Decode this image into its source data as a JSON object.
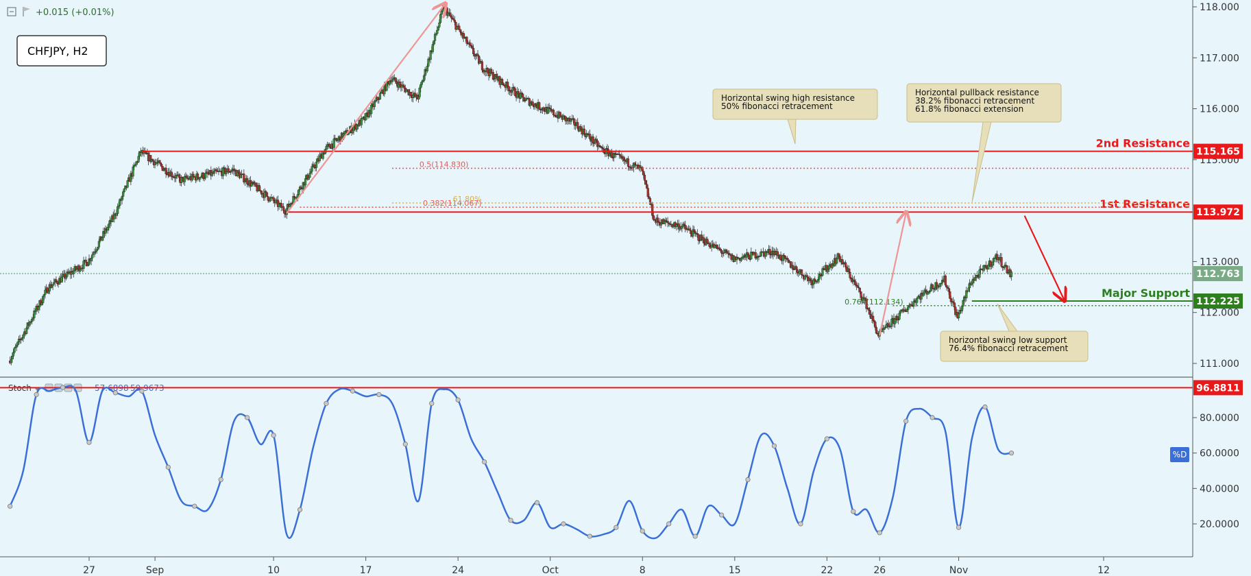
{
  "header": {
    "change_text": "+0.015 (+0.01%)",
    "symbol_label": "CHFJPY, H2"
  },
  "colors": {
    "background": "#e8f6fb",
    "candle_up": "#3a8f3a",
    "candle_down": "#a8322e",
    "resistance": "#e8191a",
    "support": "#2e7d1e",
    "fib_red": "#e05a5a",
    "stoch_line": "#3a6fd8",
    "callout_fill": "#e6dfb9",
    "arrow_pink": "#ee9595",
    "current_price_tag": "#7aab86"
  },
  "chart_data": [
    {
      "type": "candlestick",
      "title": "CHFJPY, H2",
      "x_tick_labels": [
        "27",
        "Sep",
        "10",
        "17",
        "24",
        "Oct",
        "8",
        "15",
        "22",
        "26",
        "Nov",
        "12"
      ],
      "y_tick_labels": [
        "118.000",
        "117.000",
        "116.000",
        "115.000",
        "113.000",
        "112.000",
        "111.000"
      ],
      "y_range": [
        110.75,
        118.15
      ],
      "grid": false,
      "price_path": [
        {
          "x": "Aug 21",
          "y": 111.05
        },
        {
          "x": "Aug 24",
          "y": 112.5
        },
        {
          "x": "Aug 27",
          "y": 113.0
        },
        {
          "x": "Aug 29",
          "y": 113.9
        },
        {
          "x": "Aug 31",
          "y": 115.15
        },
        {
          "x": "Sep 3",
          "y": 114.6
        },
        {
          "x": "Sep 7",
          "y": 114.8
        },
        {
          "x": "Sep 11",
          "y": 114.0
        },
        {
          "x": "Sep 14",
          "y": 115.2
        },
        {
          "x": "Sep 17",
          "y": 115.8
        },
        {
          "x": "Sep 19",
          "y": 116.6
        },
        {
          "x": "Sep 21",
          "y": 116.2
        },
        {
          "x": "Sep 23",
          "y": 118.0
        },
        {
          "x": "Sep 26",
          "y": 116.8
        },
        {
          "x": "Sep 29",
          "y": 116.2
        },
        {
          "x": "Oct 3",
          "y": 115.7
        },
        {
          "x": "Oct 5",
          "y": 115.2
        },
        {
          "x": "Oct 8",
          "y": 114.8
        },
        {
          "x": "Oct 9",
          "y": 113.8
        },
        {
          "x": "Oct 11",
          "y": 113.7
        },
        {
          "x": "Oct 15",
          "y": 113.05
        },
        {
          "x": "Oct 18",
          "y": 113.2
        },
        {
          "x": "Oct 21",
          "y": 112.6
        },
        {
          "x": "Oct 23",
          "y": 113.1
        },
        {
          "x": "Oct 25",
          "y": 112.2
        },
        {
          "x": "Oct 26",
          "y": 111.55
        },
        {
          "x": "Oct 29",
          "y": 112.3
        },
        {
          "x": "Oct 31",
          "y": 112.65
        },
        {
          "x": "Nov 1",
          "y": 111.9
        },
        {
          "x": "Nov 2",
          "y": 112.6
        },
        {
          "x": "Nov 4",
          "y": 113.1
        },
        {
          "x": "Nov 5",
          "y": 112.75
        }
      ],
      "levels": [
        {
          "label": "2nd Resistance",
          "value": "115.165",
          "y": 115.165
        },
        {
          "label": "1st Resistance",
          "value": "113.972",
          "y": 113.972
        },
        {
          "label": "Major Support",
          "value": "112.225",
          "y": 112.225
        }
      ],
      "current_price": {
        "value": "112.763",
        "y": 112.763
      },
      "fib_labels": [
        {
          "text": "0.5(114.830)",
          "y": 114.83
        },
        {
          "text": "0.382(114.067)",
          "y": 114.067
        },
        {
          "text": "61.80%",
          "y": 114.15
        },
        {
          "text": "0.764(112.134)",
          "y": 112.134
        }
      ],
      "annotations": [
        {
          "lines": [
            "Horizontal swing high resistance",
            "50% fibonacci retracement"
          ]
        },
        {
          "lines": [
            "Horizontal pullback resistance",
            "38.2% fibonacci retracement",
            "61.8% fibonacci extension"
          ]
        },
        {
          "lines": [
            "horizontal swing low support",
            "76.4% fibonacci retracement"
          ]
        }
      ]
    },
    {
      "type": "line",
      "title": "Stoch",
      "legend_values": [
        "57.6898",
        "59.9673"
      ],
      "y_tick_labels": [
        "80.0000",
        "60.0000",
        "40.0000",
        "20.0000"
      ],
      "y_range": [
        5,
        100
      ],
      "level": {
        "value": "96.8811",
        "y": 96.88
      },
      "series_label": "%D",
      "series": [
        {
          "x": "Aug 21",
          "y": 30
        },
        {
          "x": "Aug 22",
          "y": 50
        },
        {
          "x": "Aug 23",
          "y": 93
        },
        {
          "x": "Aug 24",
          "y": 95
        },
        {
          "x": "Aug 25",
          "y": 97
        },
        {
          "x": "Aug 26",
          "y": 95
        },
        {
          "x": "Aug 27",
          "y": 66
        },
        {
          "x": "Aug 28",
          "y": 95
        },
        {
          "x": "Aug 29",
          "y": 94
        },
        {
          "x": "Aug 30",
          "y": 92
        },
        {
          "x": "Aug 31",
          "y": 95
        },
        {
          "x": "Sep 1",
          "y": 70
        },
        {
          "x": "Sep 2",
          "y": 52
        },
        {
          "x": "Sep 3",
          "y": 33
        },
        {
          "x": "Sep 4",
          "y": 30
        },
        {
          "x": "Sep 5",
          "y": 28
        },
        {
          "x": "Sep 6",
          "y": 45
        },
        {
          "x": "Sep 7",
          "y": 78
        },
        {
          "x": "Sep 8",
          "y": 80
        },
        {
          "x": "Sep 9",
          "y": 65
        },
        {
          "x": "Sep 10",
          "y": 70
        },
        {
          "x": "Sep 11",
          "y": 14
        },
        {
          "x": "Sep 12",
          "y": 28
        },
        {
          "x": "Sep 13",
          "y": 63
        },
        {
          "x": "Sep 14",
          "y": 88
        },
        {
          "x": "Sep 15",
          "y": 96
        },
        {
          "x": "Sep 16",
          "y": 95
        },
        {
          "x": "Sep 17",
          "y": 92
        },
        {
          "x": "Sep 18",
          "y": 93
        },
        {
          "x": "Sep 19",
          "y": 88
        },
        {
          "x": "Sep 20",
          "y": 65
        },
        {
          "x": "Sep 21",
          "y": 33
        },
        {
          "x": "Sep 22",
          "y": 88
        },
        {
          "x": "Sep 23",
          "y": 96
        },
        {
          "x": "Sep 24",
          "y": 90
        },
        {
          "x": "Sep 25",
          "y": 68
        },
        {
          "x": "Sep 26",
          "y": 55
        },
        {
          "x": "Sep 27",
          "y": 38
        },
        {
          "x": "Sep 28",
          "y": 22
        },
        {
          "x": "Sep 29",
          "y": 22
        },
        {
          "x": "Sep 30",
          "y": 32
        },
        {
          "x": "Oct 1",
          "y": 18
        },
        {
          "x": "Oct 2",
          "y": 20
        },
        {
          "x": "Oct 3",
          "y": 17
        },
        {
          "x": "Oct 4",
          "y": 13
        },
        {
          "x": "Oct 5",
          "y": 14
        },
        {
          "x": "Oct 6",
          "y": 18
        },
        {
          "x": "Oct 7",
          "y": 33
        },
        {
          "x": "Oct 8",
          "y": 16
        },
        {
          "x": "Oct 9",
          "y": 12
        },
        {
          "x": "Oct 10",
          "y": 20
        },
        {
          "x": "Oct 11",
          "y": 28
        },
        {
          "x": "Oct 12",
          "y": 13
        },
        {
          "x": "Oct 13",
          "y": 30
        },
        {
          "x": "Oct 14",
          "y": 25
        },
        {
          "x": "Oct 15",
          "y": 20
        },
        {
          "x": "Oct 16",
          "y": 45
        },
        {
          "x": "Oct 17",
          "y": 70
        },
        {
          "x": "Oct 18",
          "y": 64
        },
        {
          "x": "Oct 19",
          "y": 40
        },
        {
          "x": "Oct 20",
          "y": 20
        },
        {
          "x": "Oct 21",
          "y": 50
        },
        {
          "x": "Oct 22",
          "y": 68
        },
        {
          "x": "Oct 23",
          "y": 62
        },
        {
          "x": "Oct 24",
          "y": 27
        },
        {
          "x": "Oct 25",
          "y": 28
        },
        {
          "x": "Oct 26",
          "y": 15
        },
        {
          "x": "Oct 27",
          "y": 35
        },
        {
          "x": "Oct 28",
          "y": 78
        },
        {
          "x": "Oct 29",
          "y": 85
        },
        {
          "x": "Oct 30",
          "y": 80
        },
        {
          "x": "Oct 31",
          "y": 72
        },
        {
          "x": "Nov 1",
          "y": 18
        },
        {
          "x": "Nov 2",
          "y": 68
        },
        {
          "x": "Nov 3",
          "y": 86
        },
        {
          "x": "Nov 4",
          "y": 62
        },
        {
          "x": "Nov 5",
          "y": 60
        }
      ]
    }
  ]
}
